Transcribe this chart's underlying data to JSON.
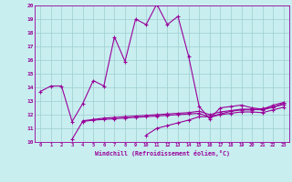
{
  "xlabel": "Windchill (Refroidissement éolien,°C)",
  "xlim": [
    -0.5,
    23.5
  ],
  "ylim": [
    10,
    20
  ],
  "xticks": [
    0,
    1,
    2,
    3,
    4,
    5,
    6,
    7,
    8,
    9,
    10,
    11,
    12,
    13,
    14,
    15,
    16,
    17,
    18,
    19,
    20,
    21,
    22,
    23
  ],
  "yticks": [
    10,
    11,
    12,
    13,
    14,
    15,
    16,
    17,
    18,
    19,
    20
  ],
  "bg_color": "#c8eef0",
  "line_color": "#990099",
  "grid_color": "#9ecece",
  "line1_x": [
    0,
    1,
    2,
    3,
    4,
    5,
    6,
    7,
    8,
    9,
    10,
    11,
    12,
    13,
    14,
    15,
    16,
    17,
    18,
    19,
    20,
    21,
    22,
    23
  ],
  "line1_y": [
    13.7,
    14.1,
    14.1,
    11.5,
    12.8,
    14.5,
    14.1,
    17.7,
    15.9,
    19.0,
    18.6,
    20.1,
    18.6,
    19.2,
    16.3,
    12.6,
    11.7,
    12.5,
    12.6,
    12.7,
    12.5,
    12.4,
    12.7,
    12.9
  ],
  "line2_x": [
    3,
    4,
    5,
    6,
    7,
    8,
    9,
    10,
    11,
    12,
    13,
    14,
    15,
    16,
    17,
    18,
    19,
    20,
    21,
    22,
    23
  ],
  "line2_y": [
    10.2,
    11.5,
    11.6,
    11.65,
    11.7,
    11.75,
    11.8,
    11.85,
    11.9,
    11.95,
    12.0,
    12.05,
    12.1,
    11.8,
    12.0,
    12.1,
    12.2,
    12.2,
    12.15,
    12.35,
    12.55
  ],
  "line3_x": [
    4,
    5,
    6,
    7,
    8,
    9,
    10,
    11,
    12,
    13,
    14,
    15,
    16,
    17,
    18,
    19,
    20,
    21,
    22,
    23
  ],
  "line3_y": [
    11.55,
    11.65,
    11.75,
    11.8,
    11.85,
    11.9,
    11.95,
    12.0,
    12.05,
    12.1,
    12.15,
    12.25,
    12.0,
    12.2,
    12.3,
    12.4,
    12.4,
    12.35,
    12.55,
    12.75
  ],
  "line4_x": [
    10,
    11,
    12,
    13,
    14,
    15,
    16,
    17,
    18,
    19,
    20,
    21,
    22,
    23
  ],
  "line4_y": [
    10.5,
    11.0,
    11.2,
    11.4,
    11.6,
    11.85,
    11.85,
    12.05,
    12.25,
    12.35,
    12.35,
    12.45,
    12.55,
    12.85
  ]
}
